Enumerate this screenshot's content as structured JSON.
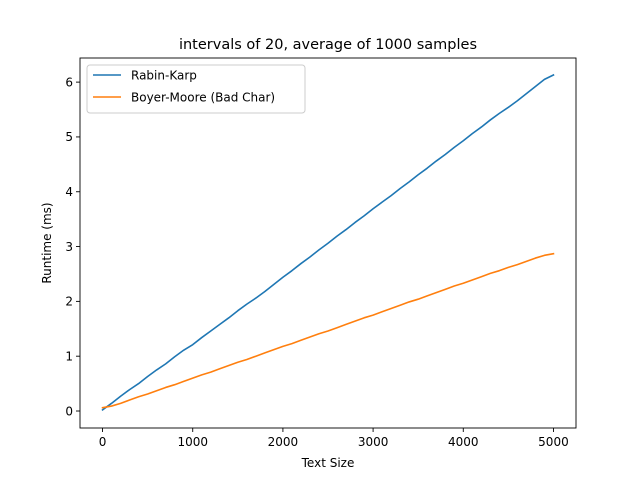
{
  "chart_data": {
    "type": "line",
    "title": "intervals of 20, average of 1000 samples",
    "xlabel": "Text Size",
    "ylabel": "Runtime (ms)",
    "xlim": [
      -250,
      5250
    ],
    "ylim": [
      -0.31,
      6.44
    ],
    "xticks": [
      0,
      1000,
      2000,
      3000,
      4000,
      5000
    ],
    "yticks": [
      0,
      1,
      2,
      3,
      4,
      5,
      6
    ],
    "legend_position": "top-left",
    "grid": false,
    "series": [
      {
        "name": "Rabin-Karp",
        "color": "#1f77b4",
        "x": [
          0,
          100,
          200,
          300,
          400,
          500,
          600,
          700,
          800,
          900,
          1000,
          1100,
          1200,
          1300,
          1400,
          1500,
          1600,
          1700,
          1800,
          1900,
          2000,
          2100,
          2200,
          2300,
          2400,
          2500,
          2600,
          2700,
          2800,
          2900,
          3000,
          3100,
          3200,
          3300,
          3400,
          3500,
          3600,
          3700,
          3800,
          3900,
          4000,
          4100,
          4200,
          4300,
          4400,
          4500,
          4600,
          4700,
          4800,
          4900,
          5000
        ],
        "y": [
          0.02,
          0.14,
          0.27,
          0.39,
          0.5,
          0.63,
          0.75,
          0.86,
          0.99,
          1.11,
          1.21,
          1.34,
          1.46,
          1.58,
          1.7,
          1.83,
          1.95,
          2.06,
          2.18,
          2.31,
          2.44,
          2.56,
          2.69,
          2.81,
          2.94,
          3.06,
          3.19,
          3.31,
          3.44,
          3.56,
          3.69,
          3.81,
          3.93,
          4.06,
          4.18,
          4.31,
          4.43,
          4.56,
          4.68,
          4.81,
          4.93,
          5.06,
          5.18,
          5.31,
          5.43,
          5.54,
          5.66,
          5.79,
          5.92,
          6.05,
          6.13
        ]
      },
      {
        "name": "Boyer-Moore (Bad Char)",
        "color": "#ff7f0e",
        "x": [
          0,
          100,
          200,
          300,
          400,
          500,
          600,
          700,
          800,
          900,
          1000,
          1100,
          1200,
          1300,
          1400,
          1500,
          1600,
          1700,
          1800,
          1900,
          2000,
          2100,
          2200,
          2300,
          2400,
          2500,
          2600,
          2700,
          2800,
          2900,
          3000,
          3100,
          3200,
          3300,
          3400,
          3500,
          3600,
          3700,
          3800,
          3900,
          4000,
          4100,
          4200,
          4300,
          4400,
          4500,
          4600,
          4700,
          4800,
          4900,
          5000
        ],
        "y": [
          0.06,
          0.09,
          0.14,
          0.2,
          0.26,
          0.31,
          0.37,
          0.43,
          0.48,
          0.54,
          0.6,
          0.66,
          0.71,
          0.77,
          0.83,
          0.89,
          0.94,
          1.0,
          1.06,
          1.12,
          1.18,
          1.23,
          1.29,
          1.35,
          1.41,
          1.46,
          1.52,
          1.58,
          1.64,
          1.7,
          1.75,
          1.81,
          1.87,
          1.93,
          1.99,
          2.04,
          2.1,
          2.16,
          2.22,
          2.28,
          2.33,
          2.39,
          2.45,
          2.51,
          2.56,
          2.62,
          2.67,
          2.73,
          2.79,
          2.84,
          2.87
        ]
      }
    ]
  }
}
